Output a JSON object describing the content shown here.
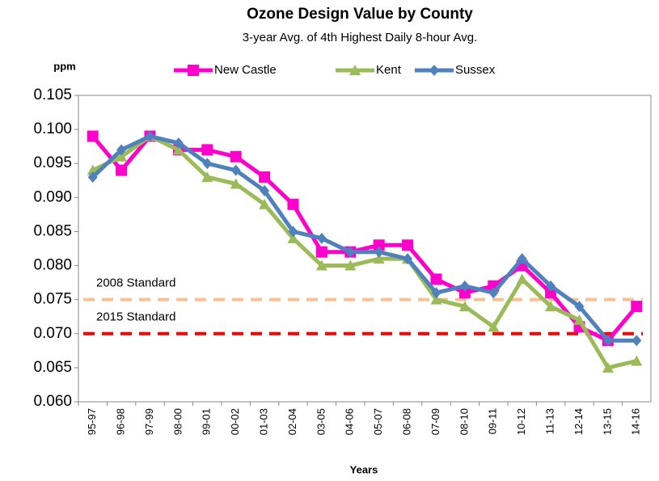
{
  "chart_data": {
    "type": "line",
    "title": "Ozone Design Value by County",
    "subtitle": "3-year Avg. of 4th Highest Daily 8-hour Avg.",
    "ylabel": "ppm",
    "xlabel": "Years",
    "categories": [
      "95-97",
      "96-98",
      "97-99",
      "98-00",
      "99-01",
      "00-02",
      "01-03",
      "02-04",
      "03-05",
      "04-06",
      "05-07",
      "06-08",
      "07-09",
      "08-10",
      "09-11",
      "10-12",
      "11-13",
      "12-14",
      "13-15",
      "14-16"
    ],
    "series": [
      {
        "name": "New Castle",
        "color": "#ff00cc",
        "marker": "square",
        "values": [
          0.099,
          0.094,
          0.099,
          0.097,
          0.097,
          0.096,
          0.093,
          0.089,
          0.082,
          0.082,
          0.083,
          0.083,
          0.078,
          0.076,
          0.077,
          0.08,
          0.076,
          0.071,
          0.069,
          0.074
        ]
      },
      {
        "name": "Kent",
        "color": "#9bbb59",
        "marker": "triangle",
        "values": [
          0.094,
          0.096,
          0.099,
          0.097,
          0.093,
          0.092,
          0.089,
          0.084,
          0.08,
          0.08,
          0.081,
          0.081,
          0.075,
          0.074,
          0.071,
          0.078,
          0.074,
          0.072,
          0.065,
          0.066
        ]
      },
      {
        "name": "Sussex",
        "color": "#4f81bd",
        "marker": "diamond",
        "values": [
          0.093,
          0.097,
          0.099,
          0.098,
          0.095,
          0.094,
          0.091,
          0.085,
          0.084,
          0.082,
          0.082,
          0.081,
          0.076,
          0.077,
          0.076,
          0.081,
          0.077,
          0.074,
          0.069,
          0.069
        ]
      }
    ],
    "reference_lines": [
      {
        "label": "2008 Standard",
        "value": 0.075,
        "color": "#fac090"
      },
      {
        "label": "2015 Standard",
        "value": 0.07,
        "color": "#ff0000"
      }
    ],
    "ylim": [
      0.06,
      0.105
    ],
    "yticks": [
      {
        "value": 0.06,
        "label": "0.060"
      },
      0.065,
      {
        "value": 0.07,
        "label": "0.070"
      },
      0.075,
      {
        "value": 0.08,
        "label": "0.080"
      },
      0.085,
      {
        "value": 0.09,
        "label": "0.090"
      },
      0.095,
      {
        "value": 0.1,
        "label": "0.100"
      },
      0.105
    ],
    "grid": false,
    "legend": "top"
  }
}
